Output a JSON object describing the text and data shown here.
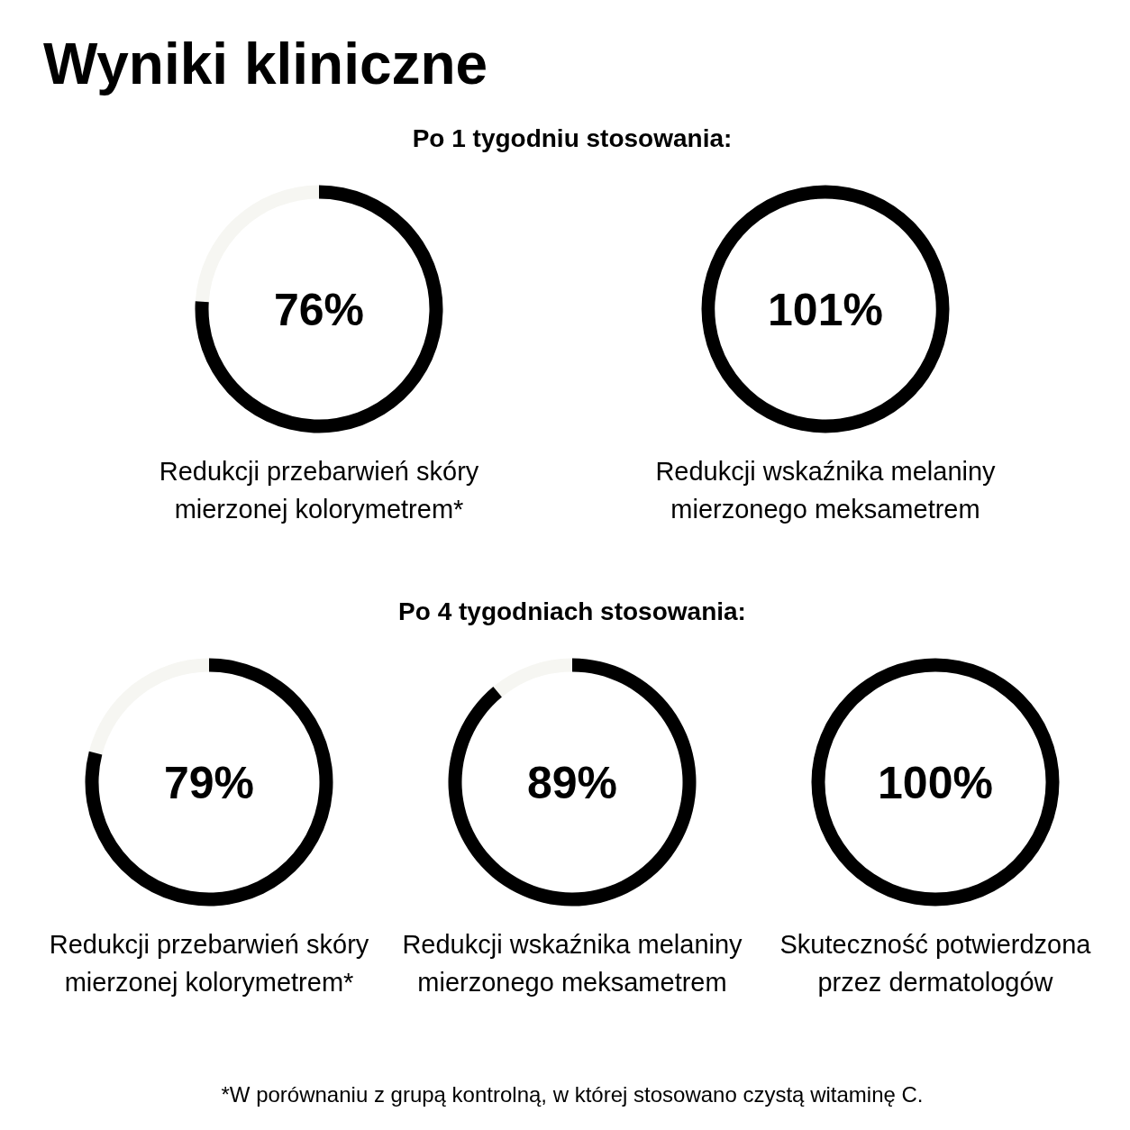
{
  "chart_data": [
    {
      "type": "other",
      "title": "Wyniki kliniczne",
      "subtitle": "Po 1 tygodniu stosowania:",
      "categories": [
        "Redukcji przebarwień skóry mierzonej kolorymetrem*",
        "Redukcji wskaźnika melaniny mierzonego meksametrem"
      ],
      "values": [
        76,
        101
      ],
      "value_labels": [
        "76%",
        "101%"
      ],
      "color": "#000000"
    },
    {
      "type": "other",
      "subtitle": "Po 4 tygodniach stosowania:",
      "categories": [
        "Redukcji przebarwień skóry mierzonej kolorymetrem*",
        "Redukcji wskaźnika melaniny mierzonego meksametrem",
        "Skuteczność potwierdzona przez dermatologów"
      ],
      "values": [
        79,
        89,
        100
      ],
      "value_labels": [
        "79%",
        "89%",
        "100%"
      ],
      "color": "#000000",
      "annotations": [
        "*W porównaniu z grupą kontrolną, w której stosowano czystą witaminę C."
      ]
    }
  ]
}
